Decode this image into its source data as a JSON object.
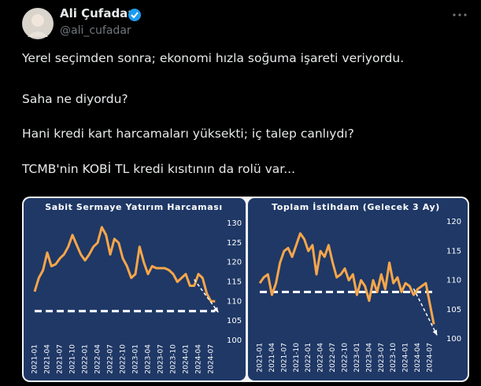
{
  "tweet": {
    "name": "Ali Çufadar",
    "handle": "@ali_cufadar",
    "paragraphs": [
      "Yerel seçimden sonra; ekonomi hızla soğuma işareti veriyordu.",
      "Saha ne diyordu?",
      "Hani kredi kart harcamaları yüksekti; iç talep canlıydı?",
      "TCMB'nin KOBİ TL kredi kısıtının da rolü var..."
    ]
  },
  "chart_data": [
    {
      "type": "line",
      "title": "Sabit Sermaye Yatırım Harcaması",
      "color": "#f7a64a",
      "categories": [
        "2021-01",
        null,
        null,
        "2021-04",
        null,
        null,
        "2021-07",
        null,
        null,
        "2021-10",
        null,
        null,
        "2022-01",
        null,
        null,
        "2022-04",
        null,
        null,
        "2022-07",
        null,
        null,
        "2022-10",
        null,
        null,
        "2023-01",
        null,
        null,
        "2023-04",
        null,
        null,
        "2023-07",
        null,
        null,
        "2023-10",
        null,
        null,
        "2024-01",
        null,
        null,
        "2024-04",
        null,
        null,
        "2024-07",
        null
      ],
      "values": [
        112.5,
        116,
        118,
        122.5,
        119,
        119.5,
        121,
        122,
        124,
        127,
        124.5,
        122,
        120.5,
        122,
        124,
        125,
        129,
        127,
        122,
        126,
        125,
        121,
        119,
        116,
        117,
        124,
        120,
        117,
        119,
        118.5,
        118.5,
        118.5,
        118,
        117,
        115,
        116,
        117,
        114,
        114,
        117,
        116,
        112,
        110,
        110
      ],
      "ylim": [
        100,
        130
      ],
      "yticks": [
        100,
        105,
        110,
        115,
        120,
        125,
        130
      ],
      "reference_line": 107.5
    },
    {
      "type": "line",
      "title": "Toplam İstihdam (Gelecek 3 Ay)",
      "color": "#f7a64a",
      "categories": [
        "2021-01",
        null,
        null,
        "2021-04",
        null,
        null,
        "2021-07",
        null,
        null,
        "2021-10",
        null,
        null,
        "2022-01",
        null,
        null,
        "2022-04",
        null,
        null,
        "2022-07",
        null,
        null,
        "2022-10",
        null,
        null,
        "2023-01",
        null,
        null,
        "2023-04",
        null,
        null,
        "2023-07",
        null,
        null,
        "2023-10",
        null,
        null,
        "2024-01",
        null,
        null,
        "2024-04",
        null,
        null,
        "2024-07",
        null
      ],
      "values": [
        109.5,
        110.5,
        111,
        107.5,
        109.5,
        113,
        115,
        115.5,
        114,
        116,
        118,
        117,
        115,
        116,
        111,
        115,
        114,
        116,
        113,
        110.5,
        111,
        112,
        110,
        111,
        107.5,
        110,
        109,
        106.5,
        110,
        108,
        111,
        108.5,
        113,
        109.5,
        110.5,
        108,
        109.5,
        109,
        107.5,
        108.5,
        109,
        109.5,
        106,
        102.5
      ],
      "ylim": [
        100,
        120
      ],
      "yticks": [
        100,
        105,
        110,
        115,
        120
      ],
      "reference_line": 108
    }
  ]
}
